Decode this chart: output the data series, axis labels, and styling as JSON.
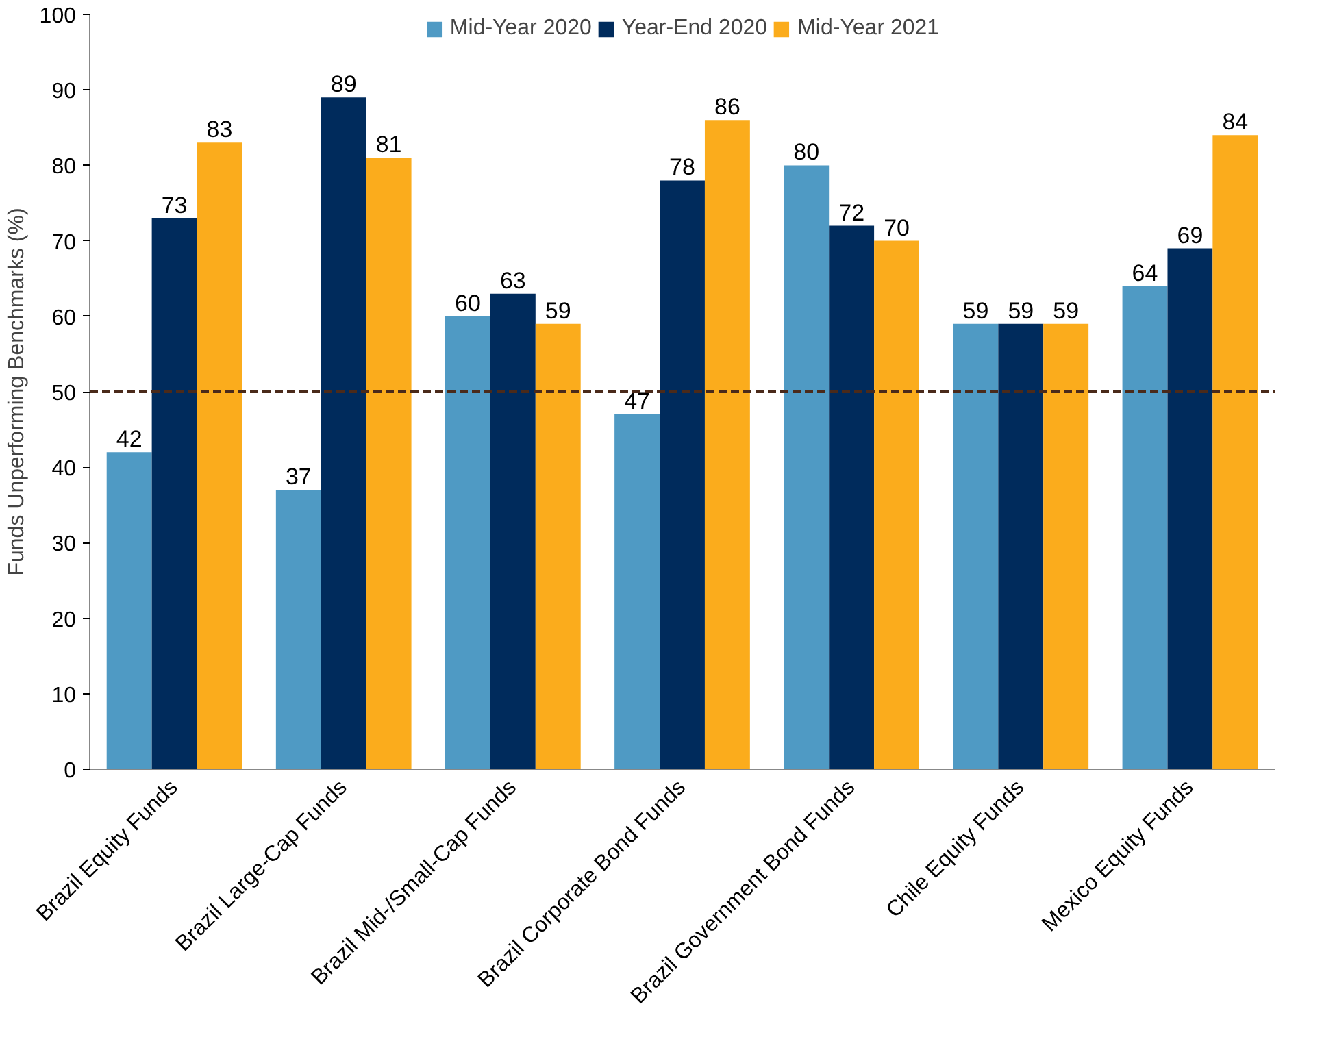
{
  "chart_data": {
    "type": "bar",
    "ylabel": "Funds Unperforming Benchmarks (%)",
    "categories": [
      "Brazil Equity Funds",
      "Brazil Large-Cap Funds",
      "Brazil Mid-/Small-Cap Funds",
      "Brazil Corporate Bond Funds",
      "Brazil Government Bond Funds",
      "Chile Equity Funds",
      "Mexico Equity Funds"
    ],
    "series": [
      {
        "name": "Mid-Year 2020",
        "color": "#4f9ac4",
        "values": [
          42,
          37,
          60,
          47,
          80,
          59,
          64
        ]
      },
      {
        "name": "Year-End 2020",
        "color": "#002b5c",
        "values": [
          73,
          89,
          63,
          78,
          72,
          59,
          69
        ]
      },
      {
        "name": "Mid-Year 2021",
        "color": "#fbac1c",
        "values": [
          83,
          81,
          59,
          86,
          70,
          59,
          84
        ]
      }
    ],
    "ylim": [
      0,
      100
    ],
    "yticks": [
      0,
      10,
      20,
      30,
      40,
      50,
      60,
      70,
      80,
      90,
      100
    ],
    "ref_lines": [
      {
        "axis": "y",
        "value": 50,
        "color": "#4a2a1a",
        "line_style": "dashed"
      }
    ],
    "data_labels": true,
    "legend": "top",
    "grid": false
  }
}
